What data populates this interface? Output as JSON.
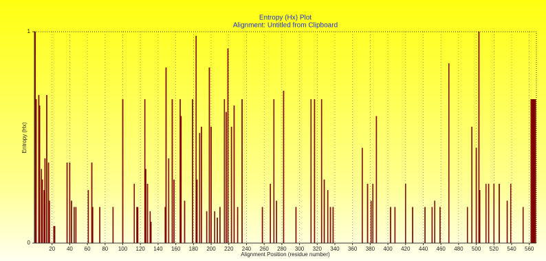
{
  "chart_data": {
    "type": "bar",
    "title": "Entropy (Hx) Plot",
    "subtitle": "Alignment: Untitled from Clipboard",
    "x_label": "Alignment Position (residue number)",
    "y_label": "Entropy (Hx)",
    "color": "#a00000",
    "grid": true,
    "xlim": [
      0,
      568
    ],
    "xticks": [
      20,
      40,
      60,
      80,
      100,
      120,
      140,
      160,
      180,
      200,
      220,
      240,
      260,
      280,
      300,
      320,
      340,
      360,
      380,
      400,
      420,
      440,
      460,
      480,
      500,
      520,
      540,
      560
    ],
    "ylim": [
      0,
      1
    ],
    "yticks": [
      0,
      1
    ],
    "x": [
      1,
      2,
      5,
      6,
      8,
      9,
      11,
      12,
      14,
      16,
      17,
      22,
      23,
      37,
      40,
      42,
      45,
      47,
      61,
      65,
      66,
      74,
      89,
      100,
      113,
      116,
      117,
      125,
      126,
      128,
      131,
      132,
      148,
      149,
      152,
      156,
      158,
      165,
      166,
      170,
      179,
      183,
      184,
      187,
      189,
      195,
      198,
      200,
      204,
      207,
      210,
      215,
      217,
      219,
      223,
      226,
      230,
      235,
      258,
      267,
      271,
      274,
      282,
      296,
      313,
      317,
      325,
      328,
      332,
      335,
      338,
      371,
      377,
      381,
      383,
      387,
      403,
      408,
      420,
      428,
      442,
      450,
      453,
      459,
      469,
      490,
      495,
      500,
      503,
      504,
      511,
      514,
      520,
      526,
      535,
      539,
      553,
      562,
      563,
      564,
      565,
      566,
      567
    ],
    "values": [
      1.0,
      0.68,
      0.7,
      0.65,
      0.35,
      0.3,
      0.25,
      0.4,
      0.7,
      0.38,
      0.2,
      0.08,
      0.08,
      0.38,
      0.38,
      0.2,
      0.17,
      0.17,
      0.25,
      0.38,
      0.17,
      0.17,
      0.17,
      0.68,
      0.28,
      0.17,
      0.17,
      0.68,
      0.35,
      0.28,
      0.15,
      0.1,
      0.17,
      0.83,
      0.4,
      0.68,
      0.3,
      0.68,
      0.6,
      0.2,
      0.68,
      0.98,
      0.3,
      0.52,
      0.55,
      0.15,
      0.83,
      0.55,
      0.15,
      0.12,
      0.17,
      0.68,
      0.62,
      0.92,
      0.55,
      0.65,
      0.17,
      0.68,
      0.17,
      0.28,
      0.68,
      0.2,
      0.72,
      0.17,
      0.68,
      0.68,
      0.68,
      0.3,
      0.25,
      0.17,
      0.17,
      0.45,
      0.28,
      0.2,
      0.28,
      0.6,
      0.17,
      0.17,
      0.28,
      0.17,
      0.17,
      0.17,
      0.2,
      0.17,
      0.85,
      0.17,
      0.55,
      0.45,
      1.0,
      0.25,
      0.28,
      0.28,
      0.28,
      0.28,
      0.2,
      0.28,
      0.17,
      0.68,
      0.68,
      0.68,
      0.68,
      0.68,
      0.68
    ]
  }
}
